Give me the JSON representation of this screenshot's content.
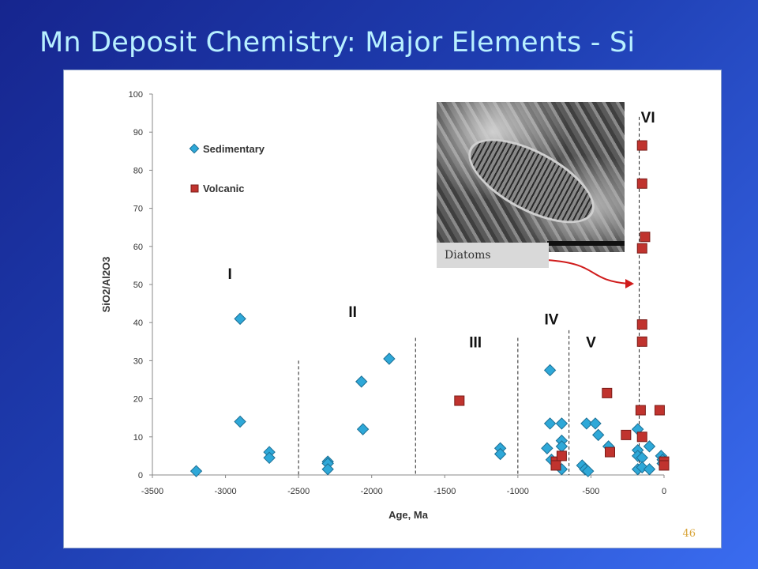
{
  "slide": {
    "title": "Mn Deposit Chemistry: Major Elements - Si",
    "page_number": "46"
  },
  "photo": {
    "caption": "Diatoms"
  },
  "chart_data": {
    "type": "scatter",
    "xlabel": "Age, Ma",
    "ylabel": "SiO2/Al2O3",
    "xlim": [
      -3500,
      0
    ],
    "ylim": [
      0,
      100
    ],
    "xticks": [
      -3500,
      -3000,
      -2500,
      -2000,
      -1500,
      -1000,
      -500,
      0
    ],
    "yticks": [
      0,
      10,
      20,
      30,
      40,
      50,
      60,
      70,
      80,
      90,
      100
    ],
    "legend_position": "top-left",
    "series": [
      {
        "name": "Sedimentary",
        "marker": "diamond",
        "color": "#2ea8d8",
        "points": [
          [
            -3200,
            1
          ],
          [
            -2900,
            41
          ],
          [
            -2900,
            14
          ],
          [
            -2700,
            6
          ],
          [
            -2700,
            4.5
          ],
          [
            -2300,
            3.5
          ],
          [
            -2300,
            3
          ],
          [
            -2300,
            1.5
          ],
          [
            -2070,
            24.5
          ],
          [
            -2060,
            12
          ],
          [
            -1880,
            30.5
          ],
          [
            -1120,
            7
          ],
          [
            -1120,
            5.5
          ],
          [
            -800,
            7
          ],
          [
            -780,
            27.5
          ],
          [
            -780,
            13.5
          ],
          [
            -770,
            4
          ],
          [
            -700,
            13.5
          ],
          [
            -700,
            9
          ],
          [
            -700,
            7.5
          ],
          [
            -700,
            1.5
          ],
          [
            -560,
            2.5
          ],
          [
            -540,
            1.5
          ],
          [
            -530,
            13.5
          ],
          [
            -520,
            1
          ],
          [
            -470,
            13.5
          ],
          [
            -450,
            10.5
          ],
          [
            -380,
            7.5
          ],
          [
            -180,
            12
          ],
          [
            -180,
            6.5
          ],
          [
            -180,
            5
          ],
          [
            -180,
            1.5
          ],
          [
            -150,
            4.5
          ],
          [
            -150,
            2
          ],
          [
            -100,
            7.5
          ],
          [
            -100,
            1.5
          ],
          [
            -20,
            5
          ],
          [
            -10,
            4
          ],
          [
            -10,
            3
          ]
        ]
      },
      {
        "name": "Volcanic",
        "marker": "square",
        "color": "#c0332e",
        "points": [
          [
            -1400,
            19.5
          ],
          [
            -740,
            3.5
          ],
          [
            -740,
            2.5
          ],
          [
            -700,
            5
          ],
          [
            -390,
            21.5
          ],
          [
            -370,
            6
          ],
          [
            -260,
            10.5
          ],
          [
            -160,
            17
          ],
          [
            -150,
            86.5
          ],
          [
            -150,
            76.5
          ],
          [
            -150,
            59.5
          ],
          [
            -150,
            39.5
          ],
          [
            -150,
            35
          ],
          [
            -150,
            10
          ],
          [
            -130,
            62.5
          ],
          [
            -30,
            17
          ],
          [
            0,
            3.5
          ],
          [
            0,
            2.5
          ]
        ]
      }
    ],
    "dividers": [
      -2500,
      -1700,
      -1000,
      -650,
      -170
    ],
    "period_labels": [
      {
        "label": "I",
        "x": -2970,
        "y": 51.5
      },
      {
        "label": "II",
        "x": -2130,
        "y": 41.5
      },
      {
        "label": "III",
        "x": -1290,
        "y": 33.5
      },
      {
        "label": "IV",
        "x": -770,
        "y": 39.5
      },
      {
        "label": "V",
        "x": -500,
        "y": 33.5
      },
      {
        "label": "VI",
        "x": -110,
        "y": 92.5
      }
    ]
  }
}
